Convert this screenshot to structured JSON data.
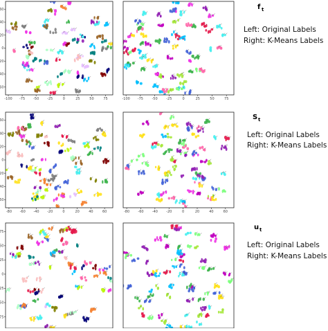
{
  "rows": [
    {
      "label_main": "f",
      "label_sub": "t",
      "desc_line1": "Left: Original Labels",
      "desc_line2": "Right: K-Means Labels"
    },
    {
      "label_main": "S",
      "label_sub": "t",
      "desc_line1": "Left: Original Labels",
      "desc_line2": "Right: K-Means Labels"
    },
    {
      "label_main": "u",
      "label_sub": "t",
      "desc_line1": "Left: Original Labels",
      "desc_line2": "Right: K-Means Labels"
    }
  ],
  "chart_data": [
    {
      "type": "scatter",
      "panel": "f_t original labels",
      "x_ticks": [
        -100,
        -75,
        -50,
        -25,
        0,
        25,
        50,
        75
      ],
      "y_ticks": [
        60,
        40,
        20,
        0,
        -20,
        -40,
        -60
      ],
      "xlim": [
        -105,
        88
      ],
      "ylim": [
        -72,
        72
      ],
      "grid": false,
      "seed": 11,
      "palette": [
        "#e6194b",
        "#3cb44b",
        "#ffe119",
        "#4363d8",
        "#f58231",
        "#911eb4",
        "#46f0f0",
        "#f032e6",
        "#bcf60c",
        "#fabebe",
        "#008080",
        "#e6beff",
        "#9a6324",
        "#800000",
        "#aaffc3",
        "#808000",
        "#000075",
        "#808080",
        "#00c0ff",
        "#ff66aa"
      ]
    },
    {
      "type": "scatter",
      "panel": "f_t k-means labels",
      "x_ticks": [
        -100,
        -75,
        -50,
        -25,
        0,
        25,
        50,
        75
      ],
      "y_ticks": [],
      "xlim": [
        -105,
        88
      ],
      "ylim": [
        -72,
        72
      ],
      "grid": false,
      "seed": 23,
      "palette": [
        "#3cb44b",
        "#a6e83b",
        "#f032e6",
        "#e6194b",
        "#46f0f0",
        "#4363d8",
        "#ffe119",
        "#911eb4",
        "#00c0ff",
        "#ff66aa",
        "#7cff7c",
        "#c000c0"
      ]
    },
    {
      "type": "scatter",
      "panel": "S_t original labels",
      "x_ticks": [
        -80,
        -60,
        -40,
        -20,
        0,
        20,
        40,
        60
      ],
      "y_ticks": [
        60,
        40,
        20,
        0,
        -20,
        -40,
        -60
      ],
      "xlim": [
        -85,
        72
      ],
      "ylim": [
        -72,
        72
      ],
      "grid": false,
      "seed": 37,
      "palette": [
        "#e6194b",
        "#3cb44b",
        "#ffe119",
        "#4363d8",
        "#f58231",
        "#911eb4",
        "#46f0f0",
        "#f032e6",
        "#bcf60c",
        "#fabebe",
        "#008080",
        "#e6beff",
        "#9a6324",
        "#800000",
        "#aaffc3",
        "#808000",
        "#000075",
        "#808080",
        "#00c0ff",
        "#ff66aa"
      ]
    },
    {
      "type": "scatter",
      "panel": "S_t k-means labels",
      "x_ticks": [
        -80,
        -60,
        -40,
        -20,
        0,
        20,
        40,
        60
      ],
      "y_ticks": [],
      "xlim": [
        -85,
        72
      ],
      "ylim": [
        -72,
        72
      ],
      "grid": false,
      "seed": 41,
      "palette": [
        "#46f0f0",
        "#4363d8",
        "#3cb44b",
        "#a6e83b",
        "#911eb4",
        "#f032e6",
        "#e6194b",
        "#00c0ff",
        "#7cff7c",
        "#c000c0",
        "#ffe119",
        "#ff66aa"
      ]
    },
    {
      "type": "scatter",
      "panel": "u_t original labels",
      "x_ticks": [],
      "y_ticks": [
        75,
        50,
        25,
        0,
        -25,
        -50,
        -75
      ],
      "xlim": [
        -90,
        90
      ],
      "ylim": [
        -95,
        90
      ],
      "grid": false,
      "seed": 53,
      "palette": [
        "#e6194b",
        "#3cb44b",
        "#ffe119",
        "#4363d8",
        "#f58231",
        "#911eb4",
        "#46f0f0",
        "#f032e6",
        "#bcf60c",
        "#fabebe",
        "#008080",
        "#e6beff",
        "#9a6324",
        "#800000",
        "#aaffc3",
        "#808000",
        "#000075",
        "#808080",
        "#00c0ff",
        "#ff66aa"
      ]
    },
    {
      "type": "scatter",
      "panel": "u_t k-means labels",
      "x_ticks": [],
      "y_ticks": [],
      "xlim": [
        -90,
        90
      ],
      "ylim": [
        -95,
        90
      ],
      "grid": false,
      "seed": 67,
      "palette": [
        "#3cb44b",
        "#7cff7c",
        "#a6e83b",
        "#46f0f0",
        "#4363d8",
        "#911eb4",
        "#f032e6",
        "#00c0ff",
        "#c000c0",
        "#e6194b",
        "#ffe119"
      ]
    }
  ]
}
